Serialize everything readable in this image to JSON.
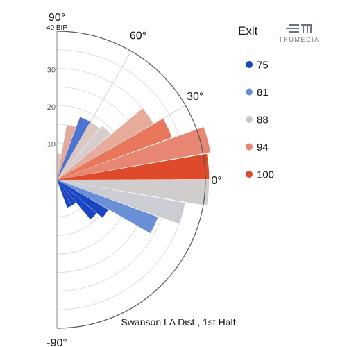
{
  "chart_data": {
    "type": "polar-bar",
    "subtitle": "Swanson LA Dist., 1st Half",
    "radial_max_label": "40 BIP",
    "radial_max": 40,
    "radial_ticks": [
      10,
      20,
      30
    ],
    "angle_range": [
      -90,
      90
    ],
    "angle_labels": [
      "90°",
      "60°",
      "30°",
      "0°",
      "-90°"
    ],
    "angle_label_values": [
      90,
      60,
      30,
      0,
      -90
    ],
    "legend": {
      "title": "Exit",
      "placement": "right",
      "entries": [
        {
          "label": "75",
          "color": "#1a45c2"
        },
        {
          "label": "81",
          "color": "#6b8fd6"
        },
        {
          "label": "88",
          "color": "#c8c8c8"
        },
        {
          "label": "94",
          "color": "#e78672"
        },
        {
          "label": "100",
          "color": "#df4a2a"
        }
      ]
    },
    "bars": [
      {
        "angle": 5,
        "value": 41,
        "color": "#df4a2a"
      },
      {
        "angle": 15,
        "value": 42,
        "color": "#e78672"
      },
      {
        "angle": 25,
        "value": 33,
        "color": "#e9775c"
      },
      {
        "angle": 35,
        "value": 30,
        "color": "#e6ab9b"
      },
      {
        "angle": 45,
        "value": 19,
        "color": "#d6cece"
      },
      {
        "angle": 55,
        "value": 18,
        "color": "#dcc8c2"
      },
      {
        "angle": 65,
        "value": 18,
        "color": "#4f73d0"
      },
      {
        "angle": 75,
        "value": 15,
        "color": "#e3aa9c"
      },
      {
        "angle": 85,
        "value": 7,
        "color": "#e3c7c0"
      },
      {
        "angle": -5,
        "value": 41,
        "color": "#d2cdcd"
      },
      {
        "angle": -15,
        "value": 35,
        "color": "#ccccd3"
      },
      {
        "angle": -25,
        "value": 29,
        "color": "#6b8fd6"
      },
      {
        "angle": -35,
        "value": 16,
        "color": "#1a45c2"
      },
      {
        "angle": -45,
        "value": 14,
        "color": "#1a45c2"
      },
      {
        "angle": -55,
        "value": 8,
        "color": "#1a45c2"
      },
      {
        "angle": -65,
        "value": 8,
        "color": "#1a45c2"
      }
    ]
  },
  "brand": {
    "name": "TRUMEDIA"
  }
}
